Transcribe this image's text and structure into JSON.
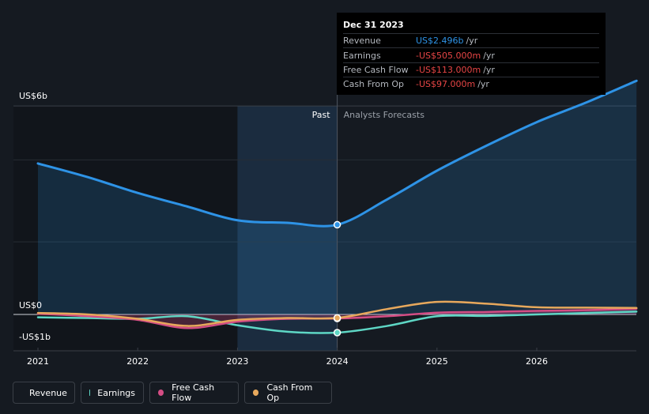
{
  "chart_data": {
    "type": "area",
    "y_axis": {
      "top_label": "US$6b",
      "zero_label": "US$0",
      "bottom_label": "-US$1b"
    },
    "x_ticks": [
      "2021",
      "2022",
      "2023",
      "2024",
      "2025",
      "2026"
    ],
    "section_labels": {
      "past": "Past",
      "forecast": "Analysts Forecasts"
    },
    "divider_x": 2024.0,
    "series": [
      {
        "name": "Revenue",
        "color": "#2e93e6",
        "points": [
          [
            2021.0,
            4.2
          ],
          [
            2021.5,
            3.82
          ],
          [
            2022.0,
            3.38
          ],
          [
            2022.5,
            3.0
          ],
          [
            2023.0,
            2.62
          ],
          [
            2023.5,
            2.55
          ],
          [
            2024.0,
            2.496
          ],
          [
            2024.5,
            3.2
          ],
          [
            2025.0,
            4.0
          ],
          [
            2025.5,
            4.7
          ],
          [
            2026.0,
            5.35
          ],
          [
            2026.5,
            5.9
          ],
          [
            2027.0,
            6.5
          ]
        ]
      },
      {
        "name": "Earnings",
        "color": "#5ed7c5",
        "points": [
          [
            2021.0,
            -0.08
          ],
          [
            2021.5,
            -0.1
          ],
          [
            2022.0,
            -0.12
          ],
          [
            2022.5,
            -0.05
          ],
          [
            2023.0,
            -0.3
          ],
          [
            2023.5,
            -0.48
          ],
          [
            2024.0,
            -0.505
          ],
          [
            2024.5,
            -0.32
          ],
          [
            2025.0,
            -0.05
          ],
          [
            2025.5,
            -0.04
          ],
          [
            2026.0,
            0.0
          ],
          [
            2026.5,
            0.04
          ],
          [
            2027.0,
            0.08
          ]
        ]
      },
      {
        "name": "Free Cash Flow",
        "color": "#d44d84",
        "points": [
          [
            2021.0,
            0.02
          ],
          [
            2021.5,
            -0.05
          ],
          [
            2022.0,
            -0.15
          ],
          [
            2022.5,
            -0.38
          ],
          [
            2023.0,
            -0.2
          ],
          [
            2023.5,
            -0.12
          ],
          [
            2024.0,
            -0.113
          ],
          [
            2024.5,
            -0.05
          ],
          [
            2025.0,
            0.05
          ],
          [
            2025.5,
            0.07
          ],
          [
            2026.0,
            0.1
          ],
          [
            2026.5,
            0.12
          ],
          [
            2027.0,
            0.16
          ]
        ]
      },
      {
        "name": "Cash From Op",
        "color": "#e7a85c",
        "points": [
          [
            2021.0,
            0.04
          ],
          [
            2021.5,
            0.0
          ],
          [
            2022.0,
            -0.12
          ],
          [
            2022.5,
            -0.32
          ],
          [
            2023.0,
            -0.15
          ],
          [
            2023.5,
            -0.1
          ],
          [
            2024.0,
            -0.097
          ],
          [
            2024.5,
            0.15
          ],
          [
            2025.0,
            0.35
          ],
          [
            2025.5,
            0.3
          ],
          [
            2026.0,
            0.2
          ],
          [
            2026.5,
            0.19
          ],
          [
            2027.0,
            0.18
          ]
        ]
      }
    ],
    "tooltip": {
      "date": "Dec 31 2023",
      "rows": [
        {
          "label": "Revenue",
          "value": "US$2.496b",
          "unit": "/yr",
          "color": "#2e93e6"
        },
        {
          "label": "Earnings",
          "value": "-US$505.000m",
          "unit": "/yr",
          "color": "#e64545"
        },
        {
          "label": "Free Cash Flow",
          "value": "-US$113.000m",
          "unit": "/yr",
          "color": "#e64545"
        },
        {
          "label": "Cash From Op",
          "value": "-US$97.000m",
          "unit": "/yr",
          "color": "#e64545"
        }
      ]
    },
    "legend": [
      {
        "label": "Revenue",
        "color": "#2e93e6"
      },
      {
        "label": "Earnings",
        "color": "#5ed7c5"
      },
      {
        "label": "Free Cash Flow",
        "color": "#d44d84"
      },
      {
        "label": "Cash From Op",
        "color": "#e7a85c"
      }
    ]
  }
}
